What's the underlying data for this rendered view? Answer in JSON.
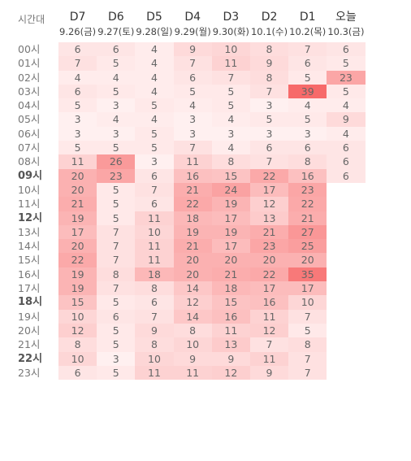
{
  "header": {
    "corner_label": "시간대",
    "columns": [
      {
        "label": "D7",
        "date": "9.26(금)"
      },
      {
        "label": "D6",
        "date": "9.27(토)"
      },
      {
        "label": "D5",
        "date": "9.28(일)"
      },
      {
        "label": "D4",
        "date": "9.29(월)"
      },
      {
        "label": "D3",
        "date": "9.30(화)"
      },
      {
        "label": "D2",
        "date": "10.1(수)"
      },
      {
        "label": "D1",
        "date": "10.2(목)"
      },
      {
        "label": "오늘",
        "date": "10.3(금)"
      }
    ]
  },
  "chart_data": {
    "type": "heatmap",
    "rows": [
      {
        "hour": "00시",
        "bold": false,
        "values": [
          6,
          6,
          4,
          9,
          10,
          8,
          7,
          6
        ]
      },
      {
        "hour": "01시",
        "bold": false,
        "values": [
          7,
          5,
          4,
          7,
          11,
          9,
          6,
          5
        ]
      },
      {
        "hour": "02시",
        "bold": false,
        "values": [
          4,
          4,
          4,
          6,
          7,
          8,
          5,
          23
        ]
      },
      {
        "hour": "03시",
        "bold": false,
        "values": [
          6,
          5,
          4,
          5,
          5,
          7,
          39,
          5
        ]
      },
      {
        "hour": "04시",
        "bold": false,
        "values": [
          5,
          3,
          5,
          4,
          5,
          3,
          4,
          4
        ]
      },
      {
        "hour": "05시",
        "bold": false,
        "values": [
          3,
          4,
          4,
          3,
          4,
          5,
          5,
          9
        ]
      },
      {
        "hour": "06시",
        "bold": false,
        "values": [
          3,
          3,
          5,
          3,
          3,
          3,
          3,
          4
        ]
      },
      {
        "hour": "07시",
        "bold": false,
        "values": [
          5,
          5,
          5,
          7,
          4,
          6,
          6,
          6
        ]
      },
      {
        "hour": "08시",
        "bold": false,
        "values": [
          11,
          26,
          3,
          11,
          8,
          7,
          8,
          6
        ]
      },
      {
        "hour": "09시",
        "bold": true,
        "values": [
          20,
          23,
          6,
          16,
          15,
          22,
          16,
          6
        ]
      },
      {
        "hour": "10시",
        "bold": false,
        "values": [
          20,
          5,
          7,
          21,
          24,
          17,
          23,
          null
        ]
      },
      {
        "hour": "11시",
        "bold": false,
        "values": [
          21,
          5,
          6,
          22,
          19,
          12,
          22,
          null
        ]
      },
      {
        "hour": "12시",
        "bold": true,
        "values": [
          19,
          5,
          11,
          18,
          17,
          13,
          21,
          null
        ]
      },
      {
        "hour": "13시",
        "bold": false,
        "values": [
          17,
          7,
          10,
          19,
          19,
          21,
          27,
          null
        ]
      },
      {
        "hour": "14시",
        "bold": false,
        "values": [
          20,
          7,
          11,
          21,
          17,
          23,
          25,
          null
        ]
      },
      {
        "hour": "15시",
        "bold": false,
        "values": [
          22,
          7,
          11,
          20,
          20,
          20,
          20,
          null
        ]
      },
      {
        "hour": "16시",
        "bold": false,
        "values": [
          19,
          8,
          18,
          20,
          21,
          22,
          35,
          null
        ]
      },
      {
        "hour": "17시",
        "bold": false,
        "values": [
          19,
          7,
          8,
          14,
          18,
          17,
          17,
          null
        ]
      },
      {
        "hour": "18시",
        "bold": true,
        "values": [
          15,
          5,
          6,
          12,
          15,
          16,
          10,
          null
        ]
      },
      {
        "hour": "19시",
        "bold": false,
        "values": [
          10,
          6,
          7,
          14,
          16,
          11,
          7,
          null
        ]
      },
      {
        "hour": "20시",
        "bold": false,
        "values": [
          12,
          5,
          9,
          8,
          11,
          12,
          5,
          null
        ]
      },
      {
        "hour": "21시",
        "bold": false,
        "values": [
          8,
          5,
          8,
          10,
          13,
          7,
          8,
          null
        ]
      },
      {
        "hour": "22시",
        "bold": true,
        "values": [
          10,
          3,
          10,
          9,
          9,
          11,
          7,
          null
        ]
      },
      {
        "hour": "23시",
        "bold": false,
        "values": [
          6,
          5,
          11,
          11,
          12,
          9,
          7,
          null
        ]
      }
    ],
    "color_scale": {
      "low": "#fff0f0",
      "high": "#f76a6a",
      "min": 3,
      "max": 39
    }
  }
}
